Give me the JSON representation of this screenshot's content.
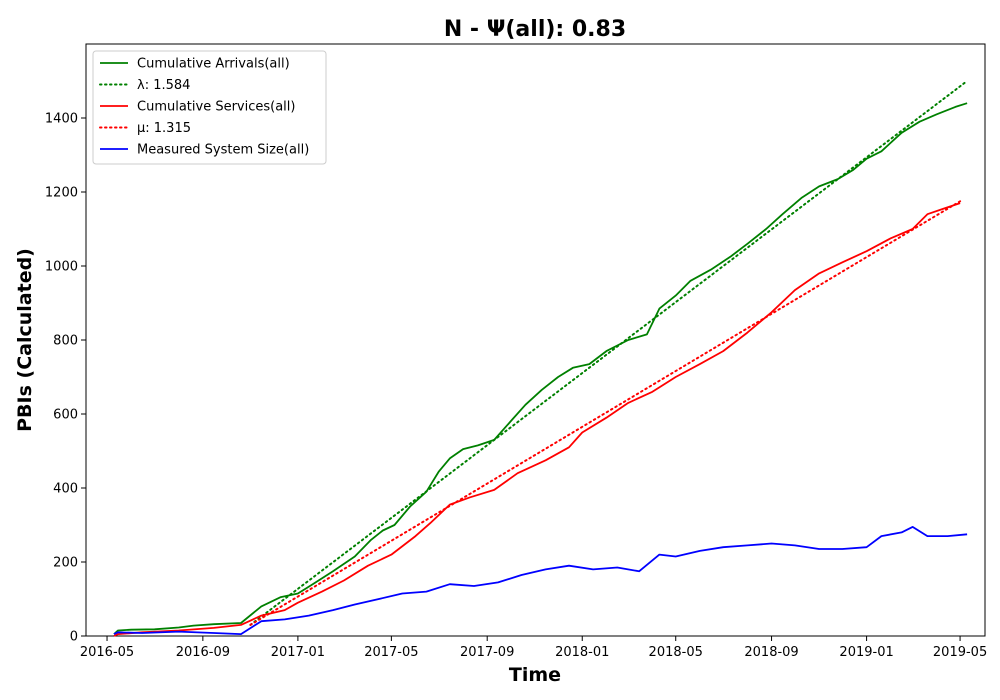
{
  "chart_data": {
    "type": "line",
    "title": "N -  Ψ(all): 0.83",
    "xlabel": "Time",
    "ylabel": "PBIs (Calculated)",
    "xlim": [
      "2016-04-04",
      "2019-06-02"
    ],
    "ylim": [
      0,
      1600
    ],
    "x_ticks": [
      "2016-05",
      "2016-09",
      "2017-01",
      "2017-05",
      "2017-09",
      "2018-01",
      "2018-05",
      "2018-09",
      "2019-01",
      "2019-05"
    ],
    "y_ticks": [
      0,
      200,
      400,
      600,
      800,
      1000,
      1200,
      1400
    ],
    "grid": false,
    "legend_position": "top-left",
    "legend": [
      "Cumulative Arrivals(all)",
      "λ: 1.584",
      "Cumulative Services(all)",
      "μ: 1.315",
      "Measured System Size(all)"
    ],
    "series": [
      {
        "name": "Cumulative Arrivals(all)",
        "color": "#008000",
        "style": "solid",
        "x": [
          "2016-05-10",
          "2016-05-15",
          "2016-06-01",
          "2016-07-01",
          "2016-08-01",
          "2016-08-20",
          "2016-09-15",
          "2016-10-20",
          "2016-11-15",
          "2016-12-10",
          "2017-01-01",
          "2017-01-20",
          "2017-02-15",
          "2017-03-15",
          "2017-04-05",
          "2017-04-20",
          "2017-05-05",
          "2017-05-25",
          "2017-06-15",
          "2017-07-01",
          "2017-07-15",
          "2017-08-01",
          "2017-08-20",
          "2017-09-10",
          "2017-10-01",
          "2017-10-20",
          "2017-11-10",
          "2017-12-01",
          "2017-12-20",
          "2018-01-10",
          "2018-02-01",
          "2018-03-01",
          "2018-03-25",
          "2018-04-10",
          "2018-05-01",
          "2018-05-20",
          "2018-06-15",
          "2018-07-10",
          "2018-08-01",
          "2018-08-25",
          "2018-09-15",
          "2018-10-10",
          "2018-11-01",
          "2018-11-25",
          "2018-12-15",
          "2019-01-01",
          "2019-01-20",
          "2019-02-15",
          "2019-03-10",
          "2019-04-01",
          "2019-04-25",
          "2019-05-10"
        ],
        "values": [
          5,
          15,
          17,
          18,
          23,
          28,
          32,
          35,
          80,
          105,
          115,
          140,
          175,
          215,
          260,
          285,
          300,
          350,
          390,
          445,
          480,
          505,
          515,
          530,
          580,
          625,
          665,
          700,
          725,
          735,
          770,
          800,
          815,
          885,
          920,
          960,
          990,
          1025,
          1060,
          1100,
          1140,
          1185,
          1215,
          1235,
          1260,
          1290,
          1310,
          1360,
          1390,
          1410,
          1430,
          1440
        ]
      },
      {
        "name": "λ: 1.584",
        "color": "#008000",
        "style": "dotted",
        "x": [
          "2016-11-01",
          "2019-05-10"
        ],
        "values": [
          30,
          1500
        ]
      },
      {
        "name": "Cumulative Services(all)",
        "color": "#ff0000",
        "style": "solid",
        "x": [
          "2016-05-10",
          "2016-05-15",
          "2016-06-15",
          "2016-08-01",
          "2016-09-15",
          "2016-10-20",
          "2016-11-15",
          "2016-12-15",
          "2017-01-01",
          "2017-02-01",
          "2017-03-01",
          "2017-04-01",
          "2017-05-01",
          "2017-06-01",
          "2017-06-20",
          "2017-07-15",
          "2017-08-10",
          "2017-09-10",
          "2017-10-10",
          "2017-11-15",
          "2017-12-15",
          "2018-01-01",
          "2018-02-01",
          "2018-03-01",
          "2018-04-01",
          "2018-05-01",
          "2018-06-01",
          "2018-07-01",
          "2018-08-01",
          "2018-09-01",
          "2018-10-01",
          "2018-11-01",
          "2018-12-01",
          "2019-01-01",
          "2019-02-01",
          "2019-03-01",
          "2019-03-20",
          "2019-04-10",
          "2019-05-01"
        ],
        "values": [
          0,
          5,
          10,
          15,
          22,
          30,
          55,
          70,
          90,
          120,
          150,
          190,
          220,
          270,
          305,
          355,
          375,
          395,
          440,
          475,
          510,
          550,
          590,
          630,
          660,
          700,
          735,
          770,
          820,
          875,
          935,
          980,
          1010,
          1040,
          1075,
          1100,
          1140,
          1155,
          1170
        ]
      },
      {
        "name": "μ: 1.315",
        "color": "#ff0000",
        "style": "dotted",
        "x": [
          "2016-11-01",
          "2019-05-01"
        ],
        "values": [
          30,
          1175
        ]
      },
      {
        "name": "Measured System Size(all)",
        "color": "#0000ff",
        "style": "solid",
        "x": [
          "2016-05-10",
          "2016-05-15",
          "2016-06-15",
          "2016-08-01",
          "2016-09-15",
          "2016-10-20",
          "2016-11-15",
          "2016-12-15",
          "2017-01-15",
          "2017-02-15",
          "2017-03-15",
          "2017-04-15",
          "2017-05-15",
          "2017-06-15",
          "2017-07-15",
          "2017-08-15",
          "2017-09-15",
          "2017-10-15",
          "2017-11-15",
          "2017-12-15",
          "2018-01-15",
          "2018-02-15",
          "2018-03-15",
          "2018-04-10",
          "2018-05-01",
          "2018-06-01",
          "2018-07-01",
          "2018-08-01",
          "2018-09-01",
          "2018-10-01",
          "2018-11-01",
          "2018-12-01",
          "2019-01-01",
          "2019-01-20",
          "2019-02-15",
          "2019-03-01",
          "2019-03-20",
          "2019-04-15",
          "2019-05-10"
        ],
        "values": [
          5,
          10,
          8,
          12,
          8,
          5,
          40,
          45,
          55,
          70,
          85,
          100,
          115,
          120,
          140,
          135,
          145,
          165,
          180,
          190,
          180,
          185,
          175,
          220,
          215,
          230,
          240,
          245,
          250,
          245,
          235,
          235,
          240,
          270,
          280,
          295,
          270,
          270,
          275
        ]
      }
    ]
  }
}
